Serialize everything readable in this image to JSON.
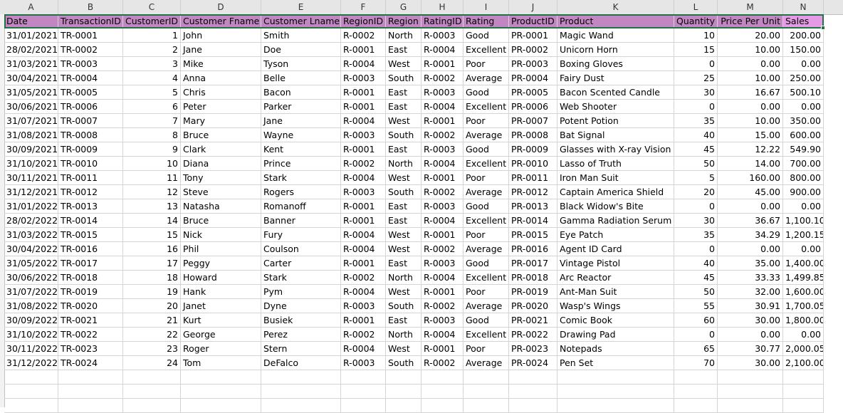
{
  "columns": [
    "A",
    "B",
    "C",
    "D",
    "E",
    "F",
    "G",
    "H",
    "I",
    "J",
    "K",
    "L",
    "M",
    "N"
  ],
  "headers": [
    "Date",
    "TransactionID",
    "CustomerID",
    "Customer Fname",
    "Customer Lname",
    "RegionID",
    "Region",
    "RatingID",
    "Rating",
    "ProductID",
    "Product",
    "Quantity",
    "Price Per Unit",
    "Sales"
  ],
  "rows": [
    [
      "31/01/2021",
      "TR-0001",
      "1",
      "John",
      "Smith",
      "R-0002",
      "North",
      "R-0003",
      "Good",
      "PR-0001",
      "Magic Wand",
      "10",
      "20.00",
      "200.00"
    ],
    [
      "28/02/2021",
      "TR-0002",
      "2",
      "Jane",
      "Doe",
      "R-0001",
      "East",
      "R-0004",
      "Excellent",
      "PR-0002",
      "Unicorn Horn",
      "15",
      "10.00",
      "150.00"
    ],
    [
      "31/03/2021",
      "TR-0003",
      "3",
      "Mike",
      "Tyson",
      "R-0004",
      "West",
      "R-0001",
      "Poor",
      "PR-0003",
      "Boxing Gloves",
      "0",
      "0.00",
      "0.00"
    ],
    [
      "30/04/2021",
      "TR-0004",
      "4",
      "Anna",
      "Belle",
      "R-0003",
      "South",
      "R-0002",
      "Average",
      "PR-0004",
      "Fairy Dust",
      "25",
      "10.00",
      "250.00"
    ],
    [
      "31/05/2021",
      "TR-0005",
      "5",
      "Chris",
      "Bacon",
      "R-0001",
      "East",
      "R-0003",
      "Good",
      "PR-0005",
      "Bacon Scented Candle",
      "30",
      "16.67",
      "500.10"
    ],
    [
      "30/06/2021",
      "TR-0006",
      "6",
      "Peter",
      "Parker",
      "R-0001",
      "East",
      "R-0004",
      "Excellent",
      "PR-0006",
      "Web Shooter",
      "0",
      "0.00",
      "0.00"
    ],
    [
      "31/07/2021",
      "TR-0007",
      "7",
      "Mary",
      "Jane",
      "R-0004",
      "West",
      "R-0001",
      "Poor",
      "PR-0007",
      "Potent Potion",
      "35",
      "10.00",
      "350.00"
    ],
    [
      "31/08/2021",
      "TR-0008",
      "8",
      "Bruce",
      "Wayne",
      "R-0003",
      "South",
      "R-0002",
      "Average",
      "PR-0008",
      "Bat Signal",
      "40",
      "15.00",
      "600.00"
    ],
    [
      "30/09/2021",
      "TR-0009",
      "9",
      "Clark",
      "Kent",
      "R-0001",
      "East",
      "R-0003",
      "Good",
      "PR-0009",
      "Glasses with X-ray Vision",
      "45",
      "12.22",
      "549.90"
    ],
    [
      "31/10/2021",
      "TR-0010",
      "10",
      "Diana",
      "Prince",
      "R-0002",
      "North",
      "R-0004",
      "Excellent",
      "PR-0010",
      "Lasso of Truth",
      "50",
      "14.00",
      "700.00"
    ],
    [
      "30/11/2021",
      "TR-0011",
      "11",
      "Tony",
      "Stark",
      "R-0004",
      "West",
      "R-0001",
      "Poor",
      "PR-0011",
      "Iron Man Suit",
      "5",
      "160.00",
      "800.00"
    ],
    [
      "31/12/2021",
      "TR-0012",
      "12",
      "Steve",
      "Rogers",
      "R-0003",
      "South",
      "R-0002",
      "Average",
      "PR-0012",
      "Captain America Shield",
      "20",
      "45.00",
      "900.00"
    ],
    [
      "31/01/2022",
      "TR-0013",
      "13",
      "Natasha",
      "Romanoff",
      "R-0001",
      "East",
      "R-0003",
      "Good",
      "PR-0013",
      "Black Widow's Bite",
      "0",
      "0.00",
      "0.00"
    ],
    [
      "28/02/2022",
      "TR-0014",
      "14",
      "Bruce",
      "Banner",
      "R-0001",
      "East",
      "R-0004",
      "Excellent",
      "PR-0014",
      "Gamma Radiation Serum",
      "30",
      "36.67",
      "1,100.10"
    ],
    [
      "31/03/2022",
      "TR-0015",
      "15",
      "Nick",
      "Fury",
      "R-0004",
      "West",
      "R-0001",
      "Poor",
      "PR-0015",
      "Eye Patch",
      "35",
      "34.29",
      "1,200.15"
    ],
    [
      "30/04/2022",
      "TR-0016",
      "16",
      "Phil",
      "Coulson",
      "R-0004",
      "West",
      "R-0002",
      "Average",
      "PR-0016",
      "Agent ID Card",
      "0",
      "0.00",
      "0.00"
    ],
    [
      "31/05/2022",
      "TR-0017",
      "17",
      "Peggy",
      "Carter",
      "R-0001",
      "East",
      "R-0003",
      "Good",
      "PR-0017",
      "Vintage Pistol",
      "40",
      "35.00",
      "1,400.00"
    ],
    [
      "30/06/2022",
      "TR-0018",
      "18",
      "Howard",
      "Stark",
      "R-0002",
      "North",
      "R-0004",
      "Excellent",
      "PR-0018",
      "Arc Reactor",
      "45",
      "33.33",
      "1,499.85"
    ],
    [
      "31/07/2022",
      "TR-0019",
      "19",
      "Hank",
      "Pym",
      "R-0004",
      "West",
      "R-0001",
      "Poor",
      "PR-0019",
      "Ant-Man Suit",
      "50",
      "32.00",
      "1,600.00"
    ],
    [
      "31/08/2022",
      "TR-0020",
      "20",
      "Janet",
      "Dyne",
      "R-0003",
      "South",
      "R-0002",
      "Average",
      "PR-0020",
      "Wasp's Wings",
      "55",
      "30.91",
      "1,700.05"
    ],
    [
      "30/09/2022",
      "TR-0021",
      "21",
      "Kurt",
      "Busiek",
      "R-0001",
      "East",
      "R-0003",
      "Good",
      "PR-0021",
      "Comic Book",
      "60",
      "30.00",
      "1,800.00"
    ],
    [
      "31/10/2022",
      "TR-0022",
      "22",
      "George",
      "Perez",
      "R-0002",
      "North",
      "R-0004",
      "Excellent",
      "PR-0022",
      "Drawing Pad",
      "0",
      "0.00",
      "0.00"
    ],
    [
      "30/11/2022",
      "TR-0023",
      "23",
      "Roger",
      "Stern",
      "R-0004",
      "West",
      "R-0001",
      "Poor",
      "PR-0023",
      "Notepads",
      "65",
      "30.77",
      "2,000.05"
    ],
    [
      "31/12/2022",
      "TR-0024",
      "24",
      "Tom",
      "DeFalco",
      "R-0003",
      "South",
      "R-0002",
      "Average",
      "PR-0024",
      "Pen Set",
      "70",
      "30.00",
      "2,100.00"
    ]
  ],
  "colors": {
    "header_fill": "#c287c2",
    "header_sales_fill": "#e49ae4",
    "selection": "#217346"
  }
}
